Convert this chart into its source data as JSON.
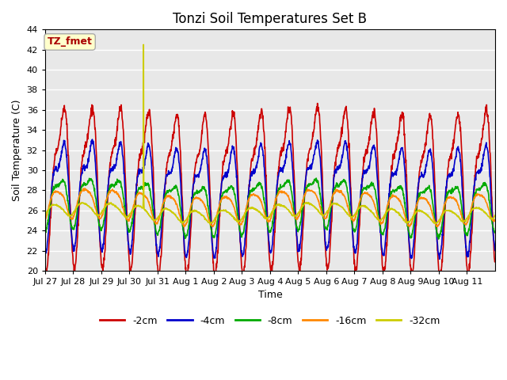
{
  "title": "Tonzi Soil Temperatures Set B",
  "xlabel": "Time",
  "ylabel": "Soil Temperature (C)",
  "ylim": [
    20,
    44
  ],
  "yticks": [
    20,
    22,
    24,
    26,
    28,
    30,
    32,
    34,
    36,
    38,
    40,
    42,
    44
  ],
  "bg_color": "#e8e8e8",
  "fig_color": "#ffffff",
  "annotation_text": "TZ_fmet",
  "annotation_color": "#aa0000",
  "annotation_bg": "#ffffcc",
  "annotation_border": "#aaaaaa",
  "series": {
    "-2cm": {
      "color": "#cc0000",
      "lw": 1.2
    },
    "-4cm": {
      "color": "#0000cc",
      "lw": 1.2
    },
    "-8cm": {
      "color": "#00aa00",
      "lw": 1.2
    },
    "-16cm": {
      "color": "#ff8800",
      "lw": 1.2
    },
    "-32cm": {
      "color": "#cccc00",
      "lw": 1.2
    }
  },
  "x_tick_labels": [
    "Jul 27",
    "Jul 28",
    "Jul 29",
    "Jul 30",
    "Jul 31",
    "Aug 1",
    "Aug 2",
    "Aug 3",
    "Aug 4",
    "Aug 5",
    "Aug 6",
    "Aug 7",
    "Aug 8",
    "Aug 9",
    "Aug 10",
    "Aug 11"
  ],
  "n_days": 16,
  "points_per_day": 96,
  "spike_day": 3,
  "spike_hour": 0.5,
  "spike_value": 42.5,
  "means": {
    "2cm": 29.0,
    "4cm": 28.0,
    "8cm": 26.8,
    "16cm": 26.5,
    "32cm": 25.8
  },
  "amps_primary": {
    "2cm": 7.0,
    "4cm": 4.5,
    "8cm": 2.3,
    "16cm": 1.4,
    "32cm": 0.6
  },
  "amps_secondary": {
    "2cm": 2.5,
    "4cm": 2.0,
    "8cm": 0.8,
    "16cm": 0.3,
    "32cm": 0.1
  },
  "phase_primary": {
    "2cm": 0.0,
    "4cm": 0.15,
    "8cm": 0.45,
    "16cm": 0.9,
    "32cm": 1.4
  },
  "phase_secondary": {
    "2cm": 0.3,
    "4cm": 0.5,
    "8cm": 0.7,
    "16cm": 1.0,
    "32cm": 1.5
  }
}
